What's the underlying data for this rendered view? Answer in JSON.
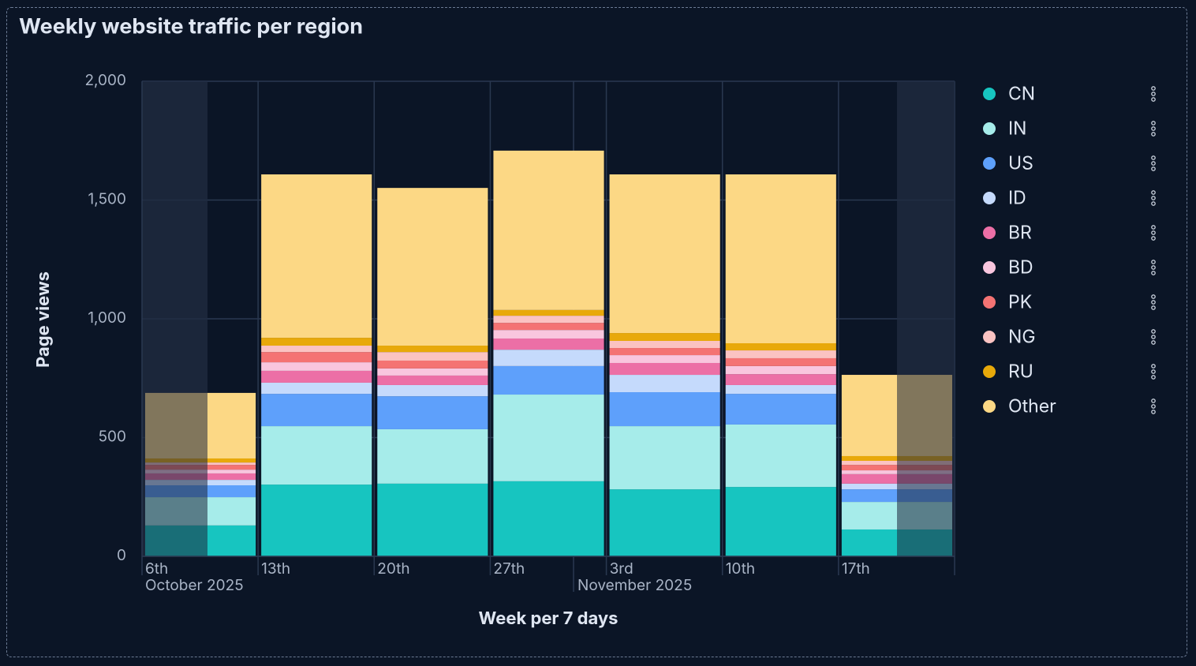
{
  "chart_data": {
    "type": "stacked_bar",
    "title": "Weekly website traffic per region",
    "y_label": "Page views",
    "x_label": "Week per 7 days",
    "categories": [
      "6th",
      "13th",
      "20th",
      "27th",
      "3rd",
      "10th",
      "17th"
    ],
    "x_group_labels": [
      "October 2025",
      "November 2025"
    ],
    "ylim": [
      0,
      2000
    ],
    "yticks": [
      0,
      500,
      {
        "value": 1000,
        "label": "1,000"
      },
      {
        "value": 1500,
        "label": "1,500"
      },
      {
        "value": 2000,
        "label": "2,000"
      }
    ],
    "grid": true,
    "legend": "right",
    "series": [
      {
        "name": "CN",
        "color": "#17c5c0",
        "values": [
          130,
          302,
          306,
          316,
          282,
          292,
          113
        ]
      },
      {
        "name": "IN",
        "color": "#a6ecea",
        "values": [
          119,
          246,
          229,
          365,
          266,
          263,
          116
        ]
      },
      {
        "name": "US",
        "color": "#5ea0fb",
        "values": [
          50,
          136,
          139,
          120,
          143,
          129,
          53
        ]
      },
      {
        "name": "ID",
        "color": "#c5dafc",
        "values": [
          23,
          47,
          47,
          69,
          73,
          37,
          24
        ]
      },
      {
        "name": "BR",
        "color": "#ec6fa6",
        "values": [
          27,
          50,
          40,
          47,
          50,
          46,
          40
        ]
      },
      {
        "name": "BD",
        "color": "#f9c6de",
        "values": [
          16,
          36,
          30,
          36,
          33,
          34,
          16
        ]
      },
      {
        "name": "PK",
        "color": "#f47373",
        "values": [
          20,
          43,
          33,
          30,
          30,
          33,
          23
        ]
      },
      {
        "name": "NG",
        "color": "#fbc3c2",
        "values": [
          10,
          27,
          36,
          30,
          30,
          33,
          17
        ]
      },
      {
        "name": "RU",
        "color": "#e8a90a",
        "values": [
          17,
          33,
          27,
          24,
          33,
          30,
          20
        ]
      },
      {
        "name": "Other",
        "color": "#fcd885",
        "values": [
          276,
          688,
          664,
          671,
          668,
          711,
          342
        ]
      }
    ]
  }
}
